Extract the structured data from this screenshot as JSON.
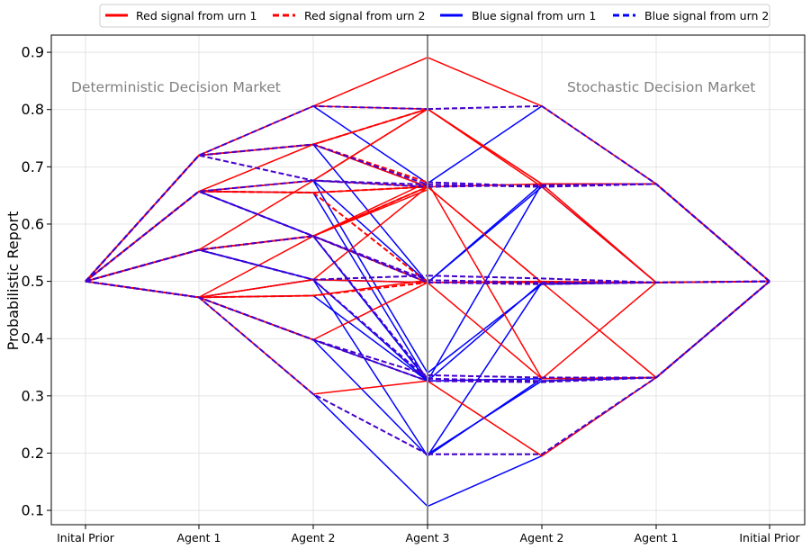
{
  "chart_data": {
    "type": "line",
    "ylabel": "Probabilistic Report",
    "xlabel": "",
    "ylim": [
      0.075,
      0.93
    ],
    "yticks": [
      0.1,
      0.2,
      0.3,
      0.4,
      0.5,
      0.6,
      0.7,
      0.8,
      0.9
    ],
    "categories": [
      "Inital Prior",
      "Agent 1",
      "Agent 2",
      "Agent 3",
      "Agent 2",
      "Agent 1",
      "Initial Prior"
    ],
    "grid": true,
    "legend_placement": "top-center",
    "legend": [
      {
        "label": "Red signal from urn 1",
        "color": "#ff0000",
        "style": "solid"
      },
      {
        "label": "Red signal from urn 2",
        "color": "#ff0000",
        "style": "dashed"
      },
      {
        "label": "Blue signal from urn 1",
        "color": "#0000ff",
        "style": "solid"
      },
      {
        "label": "Blue signal from urn 2",
        "color": "#0000ff",
        "style": "dashed"
      }
    ],
    "annotations": [
      {
        "text": "Deterministic Decision Market",
        "position": "upper-left"
      },
      {
        "text": "Stochastic Decision Market",
        "position": "upper-right"
      }
    ],
    "colors": {
      "red": "#ff0000",
      "blue": "#0000ff",
      "mixed_dashed": "#4400cc"
    },
    "deterministic_solid_red": [
      [
        0.5,
        0.72,
        0.806,
        0.891
      ],
      [
        0.5,
        0.72,
        0.806,
        0.801
      ],
      [
        0.5,
        0.72,
        0.739,
        0.801
      ],
      [
        0.5,
        0.72,
        0.739,
        0.665
      ],
      [
        0.5,
        0.657,
        0.739,
        0.801
      ],
      [
        0.5,
        0.657,
        0.676,
        0.801
      ],
      [
        0.5,
        0.657,
        0.676,
        0.665
      ],
      [
        0.5,
        0.657,
        0.655,
        0.665
      ],
      [
        0.5,
        0.555,
        0.676,
        0.801
      ],
      [
        0.5,
        0.555,
        0.579,
        0.665
      ],
      [
        0.5,
        0.555,
        0.579,
        0.673
      ],
      [
        0.5,
        0.555,
        0.579,
        0.66
      ],
      [
        0.5,
        0.472,
        0.579,
        0.665
      ],
      [
        0.5,
        0.472,
        0.503,
        0.665
      ],
      [
        0.5,
        0.472,
        0.503,
        0.498
      ],
      [
        0.5,
        0.472,
        0.475,
        0.502
      ],
      [
        0.5,
        0.472,
        0.398,
        0.498
      ],
      [
        0.5,
        0.472,
        0.303,
        0.326
      ],
      [
        0.5,
        0.555,
        0.579,
        0.498
      ]
    ],
    "deterministic_solid_blue": [
      [
        0.5,
        0.72,
        0.806,
        0.671
      ],
      [
        0.5,
        0.72,
        0.739,
        0.665
      ],
      [
        0.5,
        0.72,
        0.739,
        0.498
      ],
      [
        0.5,
        0.657,
        0.676,
        0.498
      ],
      [
        0.5,
        0.657,
        0.579,
        0.498
      ],
      [
        0.5,
        0.657,
        0.579,
        0.326
      ],
      [
        0.5,
        0.657,
        0.655,
        0.326
      ],
      [
        0.5,
        0.555,
        0.579,
        0.498
      ],
      [
        0.5,
        0.555,
        0.579,
        0.326
      ],
      [
        0.5,
        0.555,
        0.503,
        0.326
      ],
      [
        0.5,
        0.472,
        0.503,
        0.195
      ],
      [
        0.5,
        0.472,
        0.475,
        0.326
      ],
      [
        0.5,
        0.472,
        0.398,
        0.195
      ],
      [
        0.5,
        0.472,
        0.303,
        0.107
      ],
      [
        0.5,
        0.472,
        0.398,
        0.326
      ],
      [
        0.5,
        0.555,
        0.503,
        0.498
      ],
      [
        0.5,
        0.657,
        0.676,
        0.34
      ]
    ],
    "deterministic_dashed_red": [
      [
        0.5,
        0.72,
        0.739,
        0.801
      ],
      [
        0.5,
        0.657,
        0.655,
        0.665
      ],
      [
        0.5,
        0.555,
        0.579,
        0.665
      ],
      [
        0.5,
        0.472,
        0.475,
        0.498
      ],
      [
        0.5,
        0.72,
        0.739,
        0.673
      ],
      [
        0.5,
        0.657,
        0.655,
        0.498
      ],
      [
        0.5,
        0.555,
        0.579,
        0.498
      ],
      [
        0.5,
        0.472,
        0.398,
        0.326
      ]
    ],
    "deterministic_dashed_blue": [
      [
        0.5,
        0.72,
        0.806,
        0.801
      ],
      [
        0.5,
        0.72,
        0.739,
        0.669
      ],
      [
        0.5,
        0.72,
        0.676,
        0.669
      ],
      [
        0.5,
        0.657,
        0.676,
        0.665
      ],
      [
        0.5,
        0.657,
        0.579,
        0.502
      ],
      [
        0.5,
        0.555,
        0.503,
        0.51
      ],
      [
        0.5,
        0.555,
        0.579,
        0.498
      ],
      [
        0.5,
        0.472,
        0.398,
        0.326
      ],
      [
        0.5,
        0.472,
        0.398,
        0.336
      ],
      [
        0.5,
        0.472,
        0.303,
        0.198
      ],
      [
        0.5,
        0.555,
        0.503,
        0.33
      ],
      [
        0.5,
        0.657,
        0.579,
        0.33
      ]
    ],
    "stochastic_solid_red": [
      [
        0.891,
        0.806,
        0.67,
        0.5
      ],
      [
        0.801,
        0.67,
        0.67,
        0.5
      ],
      [
        0.801,
        0.67,
        0.498,
        0.5
      ],
      [
        0.801,
        0.665,
        0.498,
        0.5
      ],
      [
        0.665,
        0.67,
        0.67,
        0.5
      ],
      [
        0.665,
        0.498,
        0.498,
        0.5
      ],
      [
        0.665,
        0.498,
        0.332,
        0.5
      ],
      [
        0.673,
        0.33,
        0.498,
        0.5
      ],
      [
        0.498,
        0.498,
        0.498,
        0.5
      ],
      [
        0.498,
        0.33,
        0.332,
        0.5
      ],
      [
        0.498,
        0.5,
        0.498,
        0.5
      ],
      [
        0.326,
        0.195,
        0.332,
        0.5
      ]
    ],
    "stochastic_solid_blue": [
      [
        0.671,
        0.806,
        0.67,
        0.5
      ],
      [
        0.498,
        0.67,
        0.67,
        0.5
      ],
      [
        0.498,
        0.665,
        0.498,
        0.5
      ],
      [
        0.326,
        0.67,
        0.67,
        0.5
      ],
      [
        0.326,
        0.498,
        0.498,
        0.5
      ],
      [
        0.326,
        0.33,
        0.332,
        0.5
      ],
      [
        0.195,
        0.33,
        0.332,
        0.5
      ],
      [
        0.195,
        0.498,
        0.498,
        0.5
      ],
      [
        0.107,
        0.195,
        0.332,
        0.5
      ],
      [
        0.34,
        0.495,
        0.498,
        0.5
      ],
      [
        0.198,
        0.326,
        0.332,
        0.5
      ]
    ],
    "stochastic_dashed_blue": [
      [
        0.801,
        0.806,
        0.67,
        0.5
      ],
      [
        0.669,
        0.665,
        0.67,
        0.5
      ],
      [
        0.665,
        0.668,
        0.67,
        0.5
      ],
      [
        0.673,
        0.666,
        0.67,
        0.5
      ],
      [
        0.51,
        0.505,
        0.498,
        0.5
      ],
      [
        0.502,
        0.498,
        0.498,
        0.5
      ],
      [
        0.498,
        0.495,
        0.498,
        0.5
      ],
      [
        0.336,
        0.332,
        0.332,
        0.5
      ],
      [
        0.33,
        0.326,
        0.332,
        0.5
      ],
      [
        0.326,
        0.324,
        0.332,
        0.5
      ],
      [
        0.198,
        0.198,
        0.332,
        0.5
      ]
    ]
  }
}
